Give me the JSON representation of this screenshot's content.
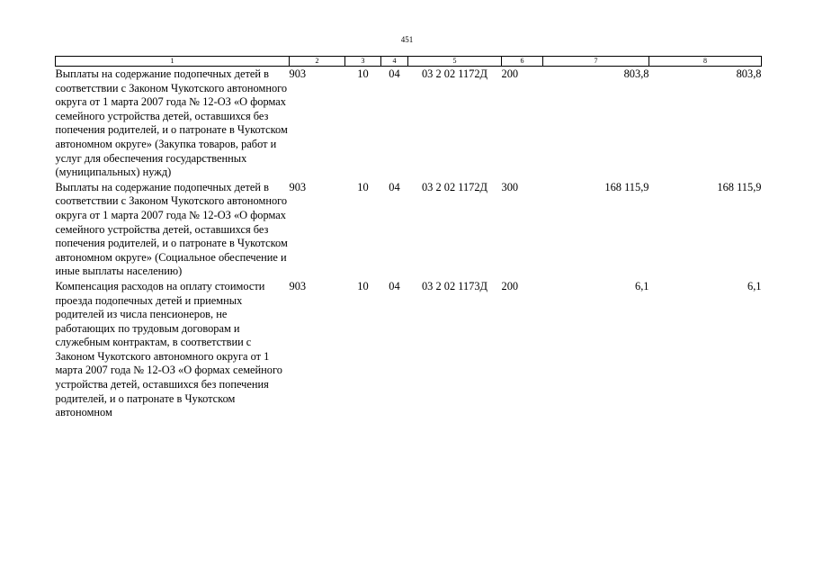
{
  "page_number": "451",
  "header_columns": [
    "1",
    "2",
    "3",
    "4",
    "5",
    "6",
    "7",
    "8"
  ],
  "rows": [
    {
      "description": "Выплаты на содержание подопечных детей в соответствии с Законом Чукотского автономного округа от 1 марта 2007 года № 12-ОЗ «О формах семейного устройства детей, оставшихся без попечения родителей, и о патронате в Чукотском автономном округе» (Закупка товаров, работ и услуг для обеспечения государственных (муниципальных) нужд)",
      "col2": "903",
      "col3": "10",
      "col4": "04",
      "col5": "03 2 02 1172Д",
      "col6": "200",
      "col7": "803,8",
      "col8": "803,8"
    },
    {
      "description": "Выплаты на содержание подопечных детей в соответствии с Законом Чукотского автономного округа от 1 марта 2007 года № 12-ОЗ «О формах семейного устройства детей, оставшихся без попечения родителей, и о патронате в Чукотском автономном округе» (Социальное обеспечение и иные выплаты населению)",
      "col2": "903",
      "col3": "10",
      "col4": "04",
      "col5": "03 2 02 1172Д",
      "col6": "300",
      "col7": "168 115,9",
      "col8": "168 115,9"
    },
    {
      "description": "Компенсация расходов на оплату стоимости проезда подопечных детей и приемных родителей из числа пенсионеров, не работающих по трудовым договорам и служебным контрактам, в соответствии с Законом Чукотского автономного округа от 1 марта 2007 года № 12-ОЗ «О формах семейного устройства детей, оставшихся без попечения родителей, и о патронате в Чукотском автономном",
      "col2": "903",
      "col3": "10",
      "col4": "04",
      "col5": "03 2 02 1173Д",
      "col6": "200",
      "col7": "6,1",
      "col8": "6,1"
    }
  ]
}
